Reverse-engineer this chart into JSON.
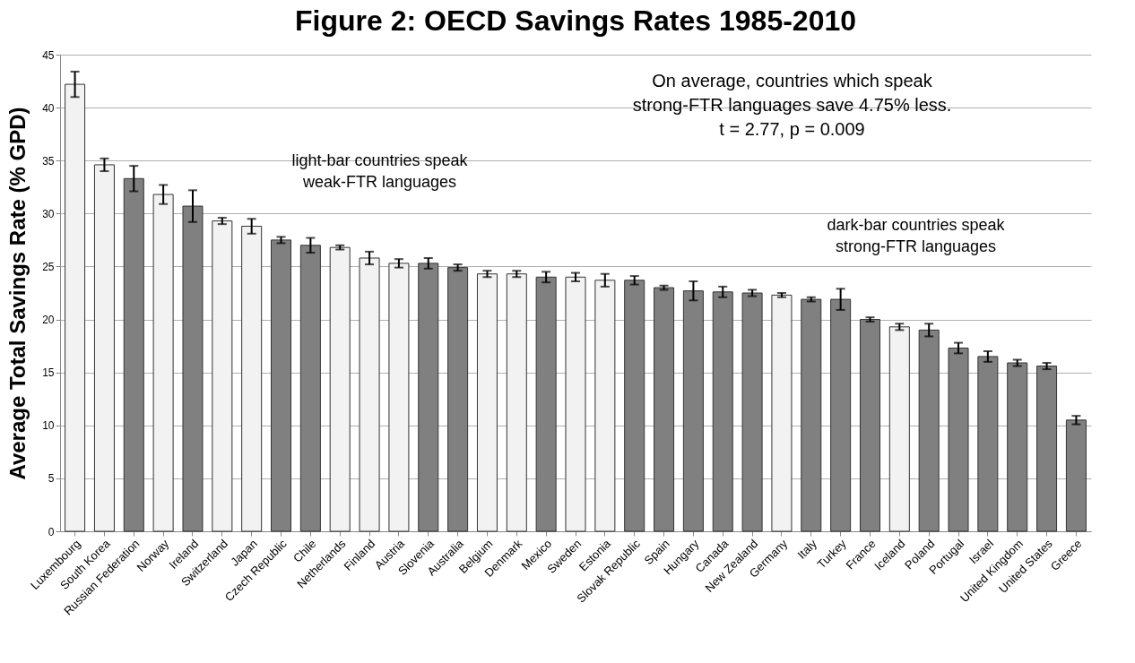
{
  "chart_data": {
    "type": "bar",
    "title": "Figure 2: OECD Savings Rates 1985-2010",
    "ylabel": "Average Total Savings Rate (% GPD)",
    "categories": [
      "Luxembourg",
      "South Korea",
      "Russian Federation",
      "Norway",
      "Ireland",
      "Switzerland",
      "Japan",
      "Czech Republic",
      "Chile",
      "Netherlands",
      "Finland",
      "Austria",
      "Slovenia",
      "Australia",
      "Belgium",
      "Denmark",
      "Mexico",
      "Sweden",
      "Estonia",
      "Slovak Republic",
      "Spain",
      "Hungary",
      "Canada",
      "New Zealand",
      "Germany",
      "Italy",
      "Turkey",
      "France",
      "Iceland",
      "Poland",
      "Portugal",
      "Israel",
      "United Kingdom",
      "United States",
      "Greece"
    ],
    "values": [
      42.2,
      34.6,
      33.3,
      31.8,
      30.7,
      29.3,
      28.8,
      27.5,
      27.0,
      26.8,
      25.8,
      25.3,
      25.3,
      24.9,
      24.3,
      24.3,
      24.0,
      24.0,
      23.7,
      23.7,
      23.0,
      22.7,
      22.6,
      22.5,
      22.3,
      21.9,
      21.9,
      20.0,
      19.3,
      19.0,
      17.3,
      16.5,
      15.9,
      15.6,
      10.5
    ],
    "errors": [
      1.2,
      0.6,
      1.2,
      0.9,
      1.5,
      0.3,
      0.7,
      0.3,
      0.7,
      0.2,
      0.6,
      0.4,
      0.5,
      0.3,
      0.3,
      0.3,
      0.5,
      0.4,
      0.6,
      0.4,
      0.2,
      0.9,
      0.5,
      0.3,
      0.2,
      0.2,
      1.0,
      0.2,
      0.3,
      0.6,
      0.5,
      0.5,
      0.3,
      0.3,
      0.4
    ],
    "colors": [
      "#f2f2f2",
      "#f2f2f2",
      "#808080",
      "#f2f2f2",
      "#808080",
      "#f2f2f2",
      "#f2f2f2",
      "#808080",
      "#808080",
      "#f2f2f2",
      "#f2f2f2",
      "#f2f2f2",
      "#808080",
      "#808080",
      "#f2f2f2",
      "#f2f2f2",
      "#808080",
      "#f2f2f2",
      "#f2f2f2",
      "#808080",
      "#808080",
      "#808080",
      "#808080",
      "#808080",
      "#f2f2f2",
      "#808080",
      "#808080",
      "#808080",
      "#f2f2f2",
      "#808080",
      "#808080",
      "#808080",
      "#808080",
      "#808080",
      "#808080"
    ],
    "ylim": [
      0,
      45
    ],
    "yticks": [
      0,
      5,
      10,
      15,
      20,
      25,
      30,
      35,
      40,
      45
    ],
    "grid": "y",
    "annotations": [
      "On average, countries which speak\nstrong-FTR languages save 4.75% less.\nt = 2.77, p = 0.009",
      "light-bar countries speak\nweak-FTR languages",
      "dark-bar countries speak\nstrong-FTR languages"
    ]
  }
}
